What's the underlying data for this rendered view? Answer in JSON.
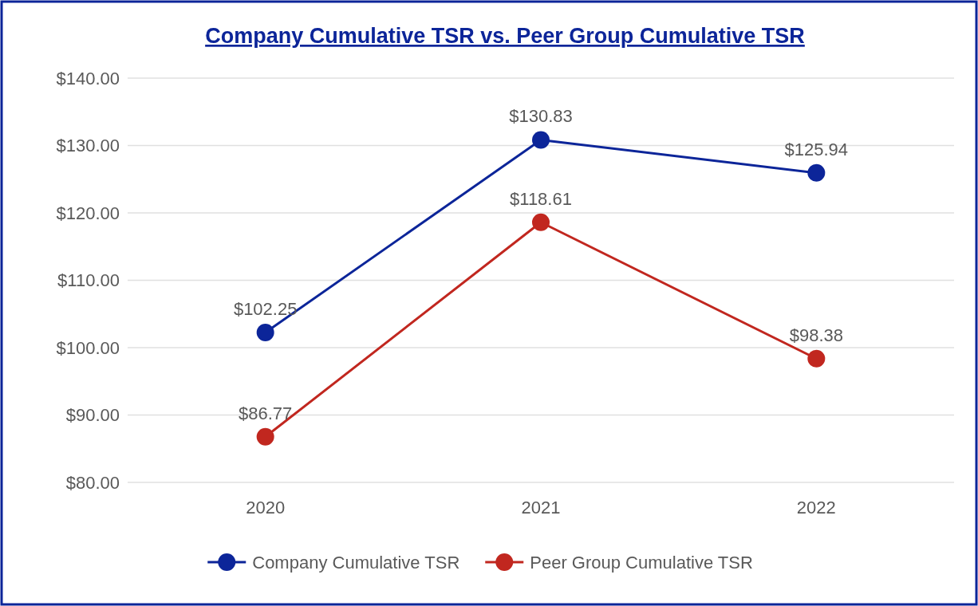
{
  "chart_data": {
    "type": "line",
    "title": "Company Cumulative TSR vs. Peer Group Cumulative TSR",
    "categories": [
      "2020",
      "2021",
      "2022"
    ],
    "series": [
      {
        "name": "Company Cumulative TSR",
        "color": "#0c2599",
        "values": [
          102.25,
          130.83,
          125.94
        ],
        "value_labels": [
          "$102.25",
          "$130.83",
          "$125.94"
        ]
      },
      {
        "name": "Peer Group Cumulative TSR",
        "color": "#c1271f",
        "values": [
          86.77,
          118.61,
          98.38
        ],
        "value_labels": [
          "$86.77",
          "$118.61",
          "$98.38"
        ]
      }
    ],
    "ylim": [
      80,
      140
    ],
    "yticks": [
      {
        "value": 80,
        "label": "$80.00"
      },
      {
        "value": 90,
        "label": "$90.00"
      },
      {
        "value": 100,
        "label": "$100.00"
      },
      {
        "value": 110,
        "label": "$110.00"
      },
      {
        "value": 120,
        "label": "$120.00"
      },
      {
        "value": 130,
        "label": "$130.00"
      },
      {
        "value": 140,
        "label": "$140.00"
      }
    ],
    "grid": "y",
    "legend": "bottom",
    "marker": "circle",
    "line_style": "solid"
  }
}
